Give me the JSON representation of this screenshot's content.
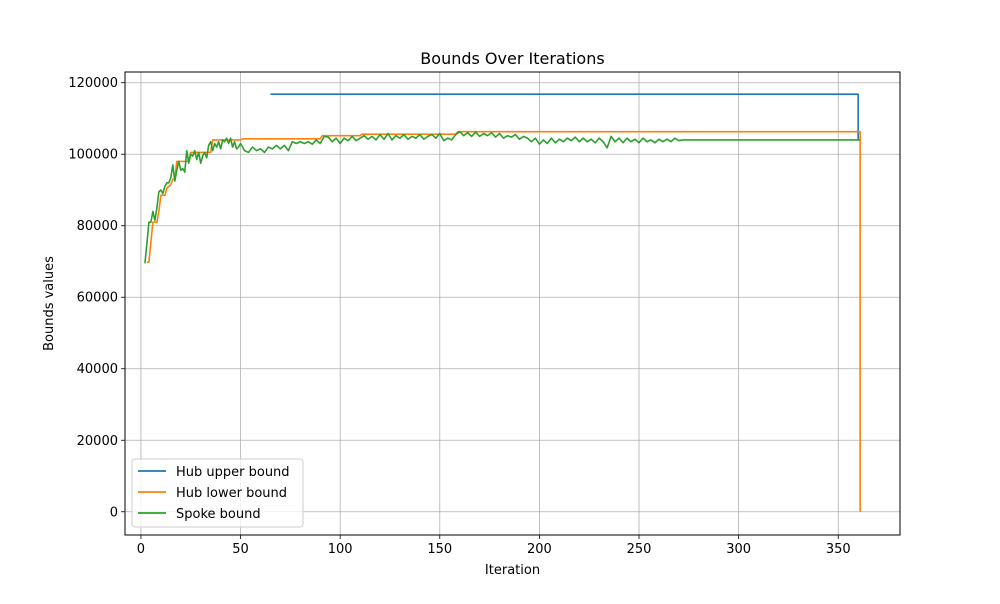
{
  "chart_data": {
    "type": "line",
    "title": "Bounds Over Iterations",
    "xlabel": "Iteration",
    "ylabel": "Bounds values",
    "xlim": [
      -8,
      381
    ],
    "ylim": [
      -6500,
      123000
    ],
    "xticks": [
      0,
      50,
      100,
      150,
      200,
      250,
      300,
      350
    ],
    "yticks": [
      0,
      20000,
      40000,
      60000,
      80000,
      100000,
      120000
    ],
    "grid": true,
    "legend_position": "lower-left",
    "series": [
      {
        "name": "Hub upper bound",
        "color": "#1f77b4",
        "points": [
          [
            65,
            116800
          ],
          [
            360,
            116800
          ],
          [
            360,
            104200
          ]
        ]
      },
      {
        "name": "Hub lower bound",
        "color": "#ff7f0e",
        "points": [
          [
            3,
            69800
          ],
          [
            4,
            69800
          ],
          [
            6,
            81000
          ],
          [
            8,
            81000
          ],
          [
            9,
            84000
          ],
          [
            10,
            88500
          ],
          [
            12,
            88500
          ],
          [
            13,
            90500
          ],
          [
            15,
            91500
          ],
          [
            16,
            93000
          ],
          [
            17,
            93000
          ],
          [
            18,
            98000
          ],
          [
            24,
            98000
          ],
          [
            25,
            100500
          ],
          [
            35,
            100500
          ],
          [
            36,
            104000
          ],
          [
            50,
            104000
          ],
          [
            51,
            104300
          ],
          [
            90,
            104300
          ],
          [
            91,
            105200
          ],
          [
            110,
            105200
          ],
          [
            111,
            105600
          ],
          [
            158,
            105600
          ],
          [
            159,
            106300
          ],
          [
            361,
            106300
          ],
          [
            361,
            0
          ]
        ]
      },
      {
        "name": "Spoke bound",
        "color": "#2ca02c",
        "points": [
          [
            2,
            69500
          ],
          [
            3,
            75000
          ],
          [
            4,
            81000
          ],
          [
            5,
            81000
          ],
          [
            6,
            84000
          ],
          [
            7,
            81500
          ],
          [
            8,
            85000
          ],
          [
            9,
            89500
          ],
          [
            10,
            90000
          ],
          [
            11,
            89000
          ],
          [
            12,
            91000
          ],
          [
            13,
            92000
          ],
          [
            14,
            92000
          ],
          [
            15,
            93500
          ],
          [
            16,
            97000
          ],
          [
            17,
            92500
          ],
          [
            18,
            95500
          ],
          [
            19,
            98000
          ],
          [
            20,
            95500
          ],
          [
            21,
            96000
          ],
          [
            22,
            95000
          ],
          [
            23,
            101000
          ],
          [
            24,
            97500
          ],
          [
            25,
            100000
          ],
          [
            26,
            99500
          ],
          [
            27,
            101000
          ],
          [
            28,
            98500
          ],
          [
            29,
            100500
          ],
          [
            30,
            97500
          ],
          [
            31,
            99500
          ],
          [
            32,
            100500
          ],
          [
            33,
            99000
          ],
          [
            34,
            102500
          ],
          [
            35,
            103500
          ],
          [
            36,
            101000
          ],
          [
            37,
            103000
          ],
          [
            38,
            102000
          ],
          [
            39,
            103500
          ],
          [
            40,
            101500
          ],
          [
            41,
            104000
          ],
          [
            42,
            103500
          ],
          [
            43,
            104500
          ],
          [
            44,
            103000
          ],
          [
            45,
            104500
          ],
          [
            46,
            102000
          ],
          [
            47,
            103500
          ],
          [
            48,
            101500
          ],
          [
            49,
            102000
          ],
          [
            50,
            103000
          ],
          [
            52,
            101000
          ],
          [
            54,
            100500
          ],
          [
            56,
            102000
          ],
          [
            58,
            101000
          ],
          [
            60,
            101500
          ],
          [
            62,
            100500
          ],
          [
            64,
            102000
          ],
          [
            66,
            101500
          ],
          [
            68,
            102500
          ],
          [
            70,
            101500
          ],
          [
            72,
            102500
          ],
          [
            74,
            101000
          ],
          [
            76,
            103500
          ],
          [
            78,
            103000
          ],
          [
            80,
            103500
          ],
          [
            82,
            103000
          ],
          [
            84,
            103500
          ],
          [
            86,
            102800
          ],
          [
            88,
            104000
          ],
          [
            90,
            103000
          ],
          [
            92,
            105000
          ],
          [
            94,
            104800
          ],
          [
            96,
            103500
          ],
          [
            98,
            104500
          ],
          [
            100,
            103000
          ],
          [
            102,
            104500
          ],
          [
            104,
            103800
          ],
          [
            106,
            105000
          ],
          [
            108,
            103800
          ],
          [
            110,
            104500
          ],
          [
            112,
            105200
          ],
          [
            114,
            104200
          ],
          [
            116,
            105000
          ],
          [
            118,
            104000
          ],
          [
            120,
            105500
          ],
          [
            122,
            104200
          ],
          [
            124,
            105800
          ],
          [
            126,
            104000
          ],
          [
            128,
            105200
          ],
          [
            130,
            104500
          ],
          [
            132,
            105500
          ],
          [
            134,
            104200
          ],
          [
            136,
            105000
          ],
          [
            138,
            104500
          ],
          [
            140,
            105500
          ],
          [
            142,
            104200
          ],
          [
            144,
            105000
          ],
          [
            146,
            105500
          ],
          [
            148,
            104500
          ],
          [
            150,
            105800
          ],
          [
            152,
            103800
          ],
          [
            154,
            104500
          ],
          [
            156,
            104000
          ],
          [
            158,
            105500
          ],
          [
            160,
            106300
          ],
          [
            162,
            105200
          ],
          [
            164,
            106000
          ],
          [
            166,
            105000
          ],
          [
            168,
            106200
          ],
          [
            170,
            105000
          ],
          [
            172,
            105800
          ],
          [
            174,
            105200
          ],
          [
            176,
            106000
          ],
          [
            178,
            104800
          ],
          [
            180,
            105800
          ],
          [
            182,
            104500
          ],
          [
            184,
            105200
          ],
          [
            186,
            104800
          ],
          [
            188,
            105500
          ],
          [
            190,
            104200
          ],
          [
            192,
            105000
          ],
          [
            194,
            104500
          ],
          [
            196,
            103500
          ],
          [
            198,
            104500
          ],
          [
            200,
            102800
          ],
          [
            202,
            104000
          ],
          [
            204,
            103000
          ],
          [
            206,
            104500
          ],
          [
            208,
            103200
          ],
          [
            210,
            104200
          ],
          [
            212,
            103500
          ],
          [
            214,
            104500
          ],
          [
            216,
            103800
          ],
          [
            218,
            104800
          ],
          [
            220,
            103500
          ],
          [
            222,
            104500
          ],
          [
            224,
            103500
          ],
          [
            226,
            104200
          ],
          [
            228,
            103200
          ],
          [
            230,
            104500
          ],
          [
            232,
            103500
          ],
          [
            234,
            101800
          ],
          [
            236,
            105000
          ],
          [
            238,
            103500
          ],
          [
            240,
            104500
          ],
          [
            242,
            103200
          ],
          [
            244,
            104500
          ],
          [
            246,
            103500
          ],
          [
            248,
            104200
          ],
          [
            250,
            103200
          ],
          [
            252,
            104500
          ],
          [
            254,
            103500
          ],
          [
            256,
            104000
          ],
          [
            258,
            103200
          ],
          [
            260,
            104200
          ],
          [
            262,
            103500
          ],
          [
            264,
            104200
          ],
          [
            266,
            103500
          ],
          [
            268,
            104500
          ],
          [
            270,
            103800
          ],
          [
            272,
            104000
          ],
          [
            361,
            104000
          ]
        ]
      }
    ]
  }
}
